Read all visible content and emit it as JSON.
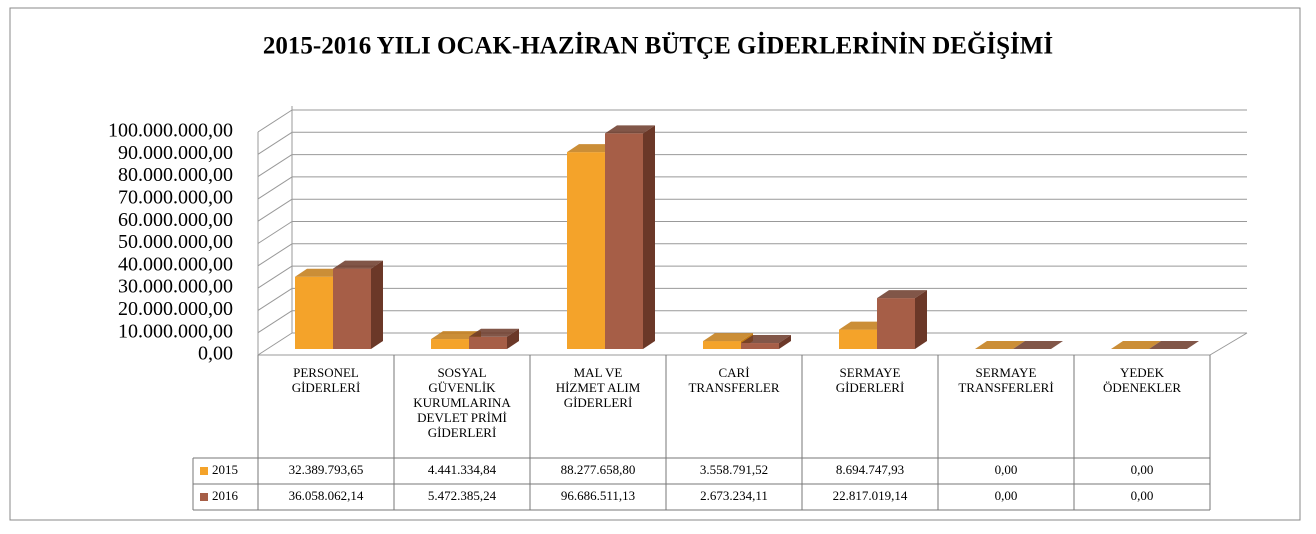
{
  "chart_data": {
    "type": "bar3d",
    "title": "2015-2016 YILI OCAK-HAZİRAN BÜTÇE GİDERLERİNİN DEĞİŞİMİ",
    "categories": [
      "PERSONEL GİDERLERİ",
      "SOSYAL GÜVENLİK KURUMLARINA DEVLET PRİMİ GİDERLERİ",
      "MAL VE HİZMET ALIM GİDERLERİ",
      "CARİ TRANSFERLER",
      "SERMAYE GİDERLERİ",
      "SERMAYE TRANSFERLERİ",
      "YEDEK ÖDENEKLER"
    ],
    "series": [
      {
        "name": "2015",
        "color": "#f4a32a",
        "side_color": "#c27a14",
        "values": [
          32389793.65,
          4441334.84,
          88277658.8,
          3558791.52,
          8694747.93,
          0,
          0
        ],
        "value_labels": [
          "32.389.793,65",
          "4.441.334,84",
          "88.277.658,80",
          "3.558.791,52",
          "8.694.747,93",
          "0,00",
          "0,00"
        ]
      },
      {
        "name": "2016",
        "color": "#a65e47",
        "side_color": "#6b3828",
        "values": [
          36058062.14,
          5472385.24,
          96686511.13,
          2673234.11,
          22817019.14,
          0,
          0
        ],
        "value_labels": [
          "36.058.062,14",
          "5.472.385,24",
          "96.686.511,13",
          "2.673.234,11",
          "22.817.019,14",
          "0,00",
          "0,00"
        ]
      }
    ],
    "ylim": [
      0,
      100000000
    ],
    "yticks": [
      {
        "value": 0,
        "label": "0,00"
      },
      {
        "value": 10000000,
        "label": "10.000.000,00"
      },
      {
        "value": 20000000,
        "label": "20.000.000,00"
      },
      {
        "value": 30000000,
        "label": "30.000.000,00"
      },
      {
        "value": 40000000,
        "label": "40.000.000,00"
      },
      {
        "value": 50000000,
        "label": "50.000.000,00"
      },
      {
        "value": 60000000,
        "label": "60.000.000,00"
      },
      {
        "value": 70000000,
        "label": "70.000.000,00"
      },
      {
        "value": 80000000,
        "label": "80.000.000,00"
      },
      {
        "value": 90000000,
        "label": "90.000.000,00"
      },
      {
        "value": 100000000,
        "label": "100.000.000,00"
      }
    ],
    "grid": true,
    "data_table": true
  }
}
